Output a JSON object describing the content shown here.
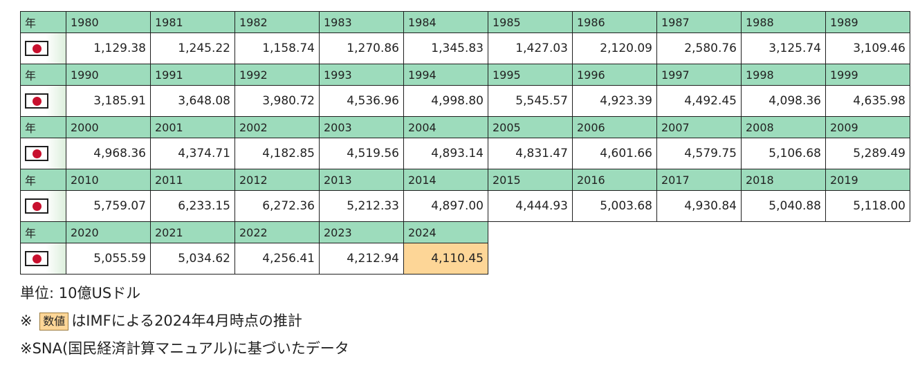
{
  "table": {
    "year_header": "年",
    "rows": [
      {
        "years": [
          "1980",
          "1981",
          "1982",
          "1983",
          "1984",
          "1985",
          "1986",
          "1987",
          "1988",
          "1989"
        ],
        "values": [
          "1,129.38",
          "1,245.22",
          "1,158.74",
          "1,270.86",
          "1,345.83",
          "1,427.03",
          "2,120.09",
          "2,580.76",
          "3,125.74",
          "3,109.46"
        ]
      },
      {
        "years": [
          "1990",
          "1991",
          "1992",
          "1993",
          "1994",
          "1995",
          "1996",
          "1997",
          "1998",
          "1999"
        ],
        "values": [
          "3,185.91",
          "3,648.08",
          "3,980.72",
          "4,536.96",
          "4,998.80",
          "5,545.57",
          "4,923.39",
          "4,492.45",
          "4,098.36",
          "4,635.98"
        ]
      },
      {
        "years": [
          "2000",
          "2001",
          "2002",
          "2003",
          "2004",
          "2005",
          "2006",
          "2007",
          "2008",
          "2009"
        ],
        "values": [
          "4,968.36",
          "4,374.71",
          "4,182.85",
          "4,519.56",
          "4,893.14",
          "4,831.47",
          "4,601.66",
          "4,579.75",
          "5,106.68",
          "5,289.49"
        ]
      },
      {
        "years": [
          "2010",
          "2011",
          "2012",
          "2013",
          "2014",
          "2015",
          "2016",
          "2017",
          "2018",
          "2019"
        ],
        "values": [
          "5,759.07",
          "6,233.15",
          "6,272.36",
          "5,212.33",
          "4,897.00",
          "4,444.93",
          "5,003.68",
          "4,930.84",
          "5,040.88",
          "5,118.00"
        ]
      },
      {
        "years": [
          "2020",
          "2021",
          "2022",
          "2023",
          "2024"
        ],
        "values": [
          "5,055.59",
          "5,034.62",
          "4,256.41",
          "4,212.94",
          "4,110.45"
        ]
      }
    ],
    "estimate_years": [
      "2024"
    ],
    "flag_icon": "japan-flag-icon"
  },
  "colors": {
    "year_header_bg": "#9ddcbc",
    "estimate_bg": "#fdd697",
    "flag_red": "#c8102e"
  },
  "notes": {
    "unit": "単位: 10億USドル",
    "estimate_prefix": "※",
    "estimate_swatch": "数値",
    "estimate_suffix": "はIMFによる2024年4月時点の推計",
    "sna": "※SNA(国民経済計算マニュアル)に基づいたデータ"
  }
}
